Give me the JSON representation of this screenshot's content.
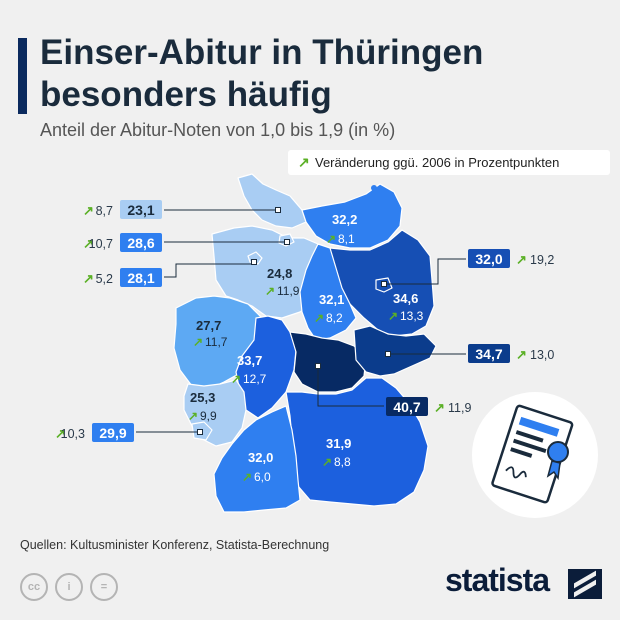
{
  "header": {
    "title_line1": "Einser-Abitur in Thüringen",
    "title_line2": "besonders häufig",
    "subtitle": "Anteil der Abitur-Noten von 1,0 bis 1,9 (in %)"
  },
  "legend": {
    "arrow": "↗",
    "text": "Veränderung ggü. 2006 in Prozentpunkten"
  },
  "chart_data": {
    "type": "table",
    "title": "Einser-Abitur in Thüringen besonders häufig",
    "subtitle": "Anteil der Abitur-Noten von 1,0 bis 1,9 (in %)",
    "unit": "%",
    "change_label": "Veränderung ggü. 2006 in Prozentpunkten",
    "states": [
      {
        "id": "sh",
        "value": "23,1",
        "change": "8,7",
        "callout": true
      },
      {
        "id": "hh",
        "value": "28,6",
        "change": "10,7",
        "callout": true
      },
      {
        "id": "hb",
        "value": "28,1",
        "change": "5,2",
        "callout": true
      },
      {
        "id": "mv",
        "value": "32,2",
        "change": "8,1",
        "callout": false
      },
      {
        "id": "be",
        "value": "32,0",
        "change": "19,2",
        "callout": true
      },
      {
        "id": "ni",
        "value": "24,8",
        "change": "11,9",
        "callout": false
      },
      {
        "id": "bb",
        "value": "34,6",
        "change": "13,3",
        "callout": false
      },
      {
        "id": "st",
        "value": "32,1",
        "change": "8,2",
        "callout": false
      },
      {
        "id": "sn",
        "value": "34,7",
        "change": "13,0",
        "callout": true
      },
      {
        "id": "nw",
        "value": "27,7",
        "change": "11,7",
        "callout": false
      },
      {
        "id": "he",
        "value": "33,7",
        "change": "12,7",
        "callout": false
      },
      {
        "id": "th",
        "value": "40,7",
        "change": "11,9",
        "callout": true
      },
      {
        "id": "rp",
        "value": "25,3",
        "change": "9,9",
        "callout": false
      },
      {
        "id": "sl",
        "value": "29,9",
        "change": "10,3",
        "callout": true
      },
      {
        "id": "bw",
        "value": "32,0",
        "change": "6,0",
        "callout": false
      },
      {
        "id": "by",
        "value": "31,9",
        "change": "8,8",
        "callout": false
      }
    ]
  },
  "footer": {
    "source": "Quellen: Kultusminister Konferenz, Statista-Berechnung",
    "cc_icons": [
      "cc",
      "i",
      "="
    ],
    "brand": "statista"
  },
  "colors": {
    "vlight": "#a9cdf3",
    "light": "#5da9f3",
    "mid": "#2f7ff0",
    "midd": "#1c60de",
    "dark": "#164fb4",
    "darker": "#0b3c8c",
    "darkest": "#072a64",
    "arrow": "#5bb026"
  }
}
